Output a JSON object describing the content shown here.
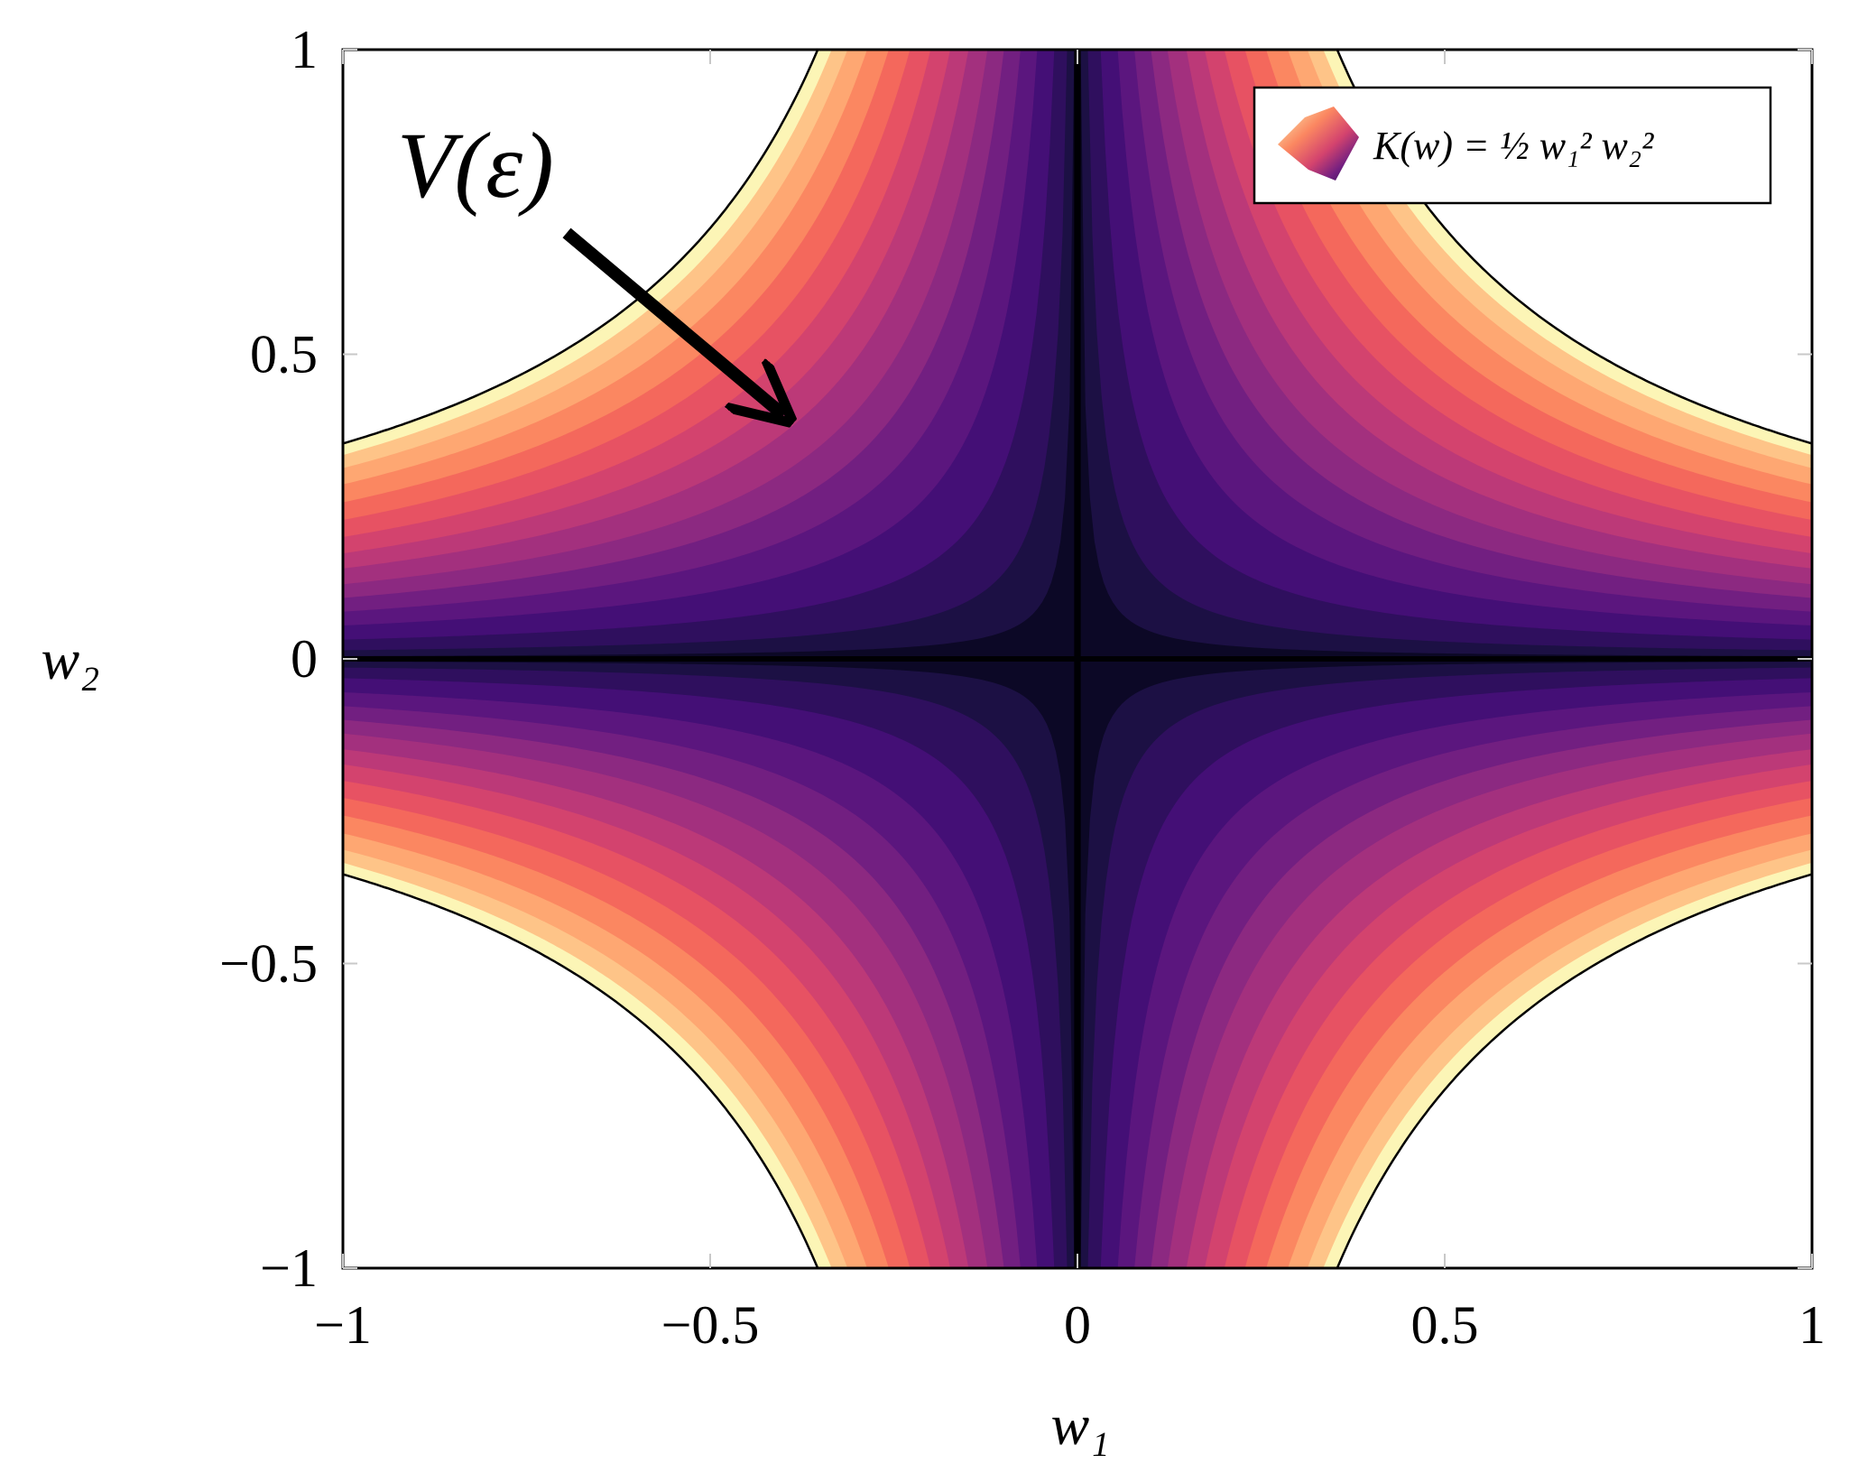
{
  "chart_data": {
    "type": "contour",
    "function": {
      "label": "K(w) = ½ w₁² w₂²",
      "coefficient": 0.5
    },
    "xlabel": "w₁",
    "ylabel": "w₂",
    "xlim": [
      -1,
      1
    ],
    "ylim": [
      -1,
      1
    ],
    "xticks": [
      -1,
      -0.5,
      0,
      0.5,
      1
    ],
    "yticks": [
      -1,
      -0.5,
      0,
      0.5,
      1
    ],
    "xtick_labels": [
      "−1",
      "−0.5",
      "0",
      "0.5",
      "1"
    ],
    "ytick_labels": [
      "−1",
      "−0.5",
      "0",
      "0.5",
      "1"
    ],
    "boundary_level": 0.0625,
    "levels": [
      0,
      1e-05,
      0.0001,
      0.0005,
      0.0015,
      0.003,
      0.005,
      0.0075,
      0.011,
      0.015,
      0.02,
      0.026,
      0.033,
      0.041,
      0.049,
      0.056,
      0.0625
    ],
    "colors": [
      "#000004",
      "#0c0826",
      "#1c1044",
      "#2f0f5e",
      "#440f76",
      "#5b167e",
      "#721f81",
      "#8c2981",
      "#a3307e",
      "#bc3978",
      "#d3436e",
      "#e75263",
      "#f4685c",
      "#fb8761",
      "#fea772",
      "#fec488",
      "#fcf5b6"
    ],
    "colormap": "magma",
    "grid": false,
    "legend": {
      "label": "K(w) = ½ w₁² w₂²",
      "placement": "top-right"
    },
    "annotation": {
      "text": "V(ε)",
      "points_to": [
        -0.4,
        0.4
      ]
    }
  }
}
